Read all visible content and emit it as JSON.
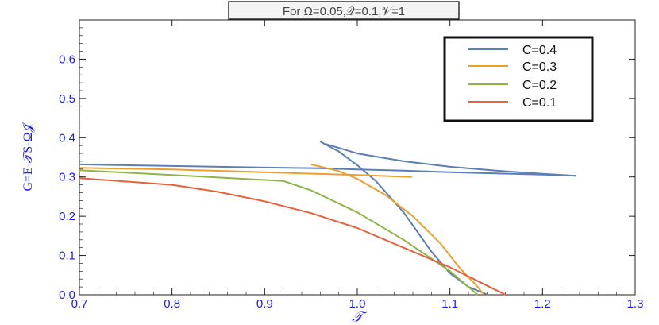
{
  "chart_data": {
    "type": "line",
    "title": "For Ω=0.05,𝒬=0.1,𝒱=1",
    "xlabel": "𝒯",
    "ylabel": "G=E-𝒯S-Ω𝒥",
    "xlim": [
      0.7,
      1.3
    ],
    "ylim": [
      0.0,
      0.7
    ],
    "xticks": [
      0.7,
      0.8,
      0.9,
      1.0,
      1.1,
      1.2,
      1.3
    ],
    "xtick_labels": [
      "0.7",
      "0.8",
      "0.9",
      "1.0",
      "1.1",
      "1.2",
      "1.3"
    ],
    "yticks": [
      0.0,
      0.1,
      0.2,
      0.3,
      0.4,
      0.5,
      0.6
    ],
    "ytick_labels": [
      "0.0",
      "0.1",
      "0.2",
      "0.3",
      "0.4",
      "0.5",
      "0.6"
    ],
    "legend_position": "top-right",
    "series": [
      {
        "name": "C=0.4",
        "color": "#5b7fb5",
        "segments": [
          {
            "x": [
              0.7,
              0.8,
              0.9,
              0.96
            ],
            "y": [
              0.332,
              0.328,
              0.324,
              0.322
            ]
          },
          {
            "x": [
              0.96,
              1.0,
              1.05,
              1.1,
              1.15,
              1.2,
              1.236
            ],
            "y": [
              0.322,
              0.319,
              0.316,
              0.312,
              0.309,
              0.306,
              0.303
            ]
          },
          {
            "x": [
              0.96,
              0.98,
              1.0,
              1.02,
              1.05,
              1.08,
              1.1,
              1.12,
              1.141
            ],
            "y": [
              0.39,
              0.365,
              0.33,
              0.29,
              0.21,
              0.11,
              0.055,
              0.02,
              0.0
            ]
          },
          {
            "x": [
              0.966,
              1.0,
              1.05,
              1.1,
              1.15,
              1.2,
              1.236
            ],
            "y": [
              0.384,
              0.36,
              0.34,
              0.326,
              0.316,
              0.308,
              0.303
            ]
          }
        ]
      },
      {
        "name": "C=0.3",
        "color": "#e8a030",
        "segments": [
          {
            "x": [
              0.7,
              0.8,
              0.9,
              1.0,
              1.059
            ],
            "y": [
              0.323,
              0.319,
              0.312,
              0.305,
              0.3
            ]
          },
          {
            "x": [
              0.95,
              0.98,
              1.0,
              1.03,
              1.06,
              1.09,
              1.11,
              1.13,
              1.137
            ],
            "y": [
              0.332,
              0.315,
              0.295,
              0.255,
              0.2,
              0.13,
              0.07,
              0.02,
              0.0
            ]
          }
        ]
      },
      {
        "name": "C=0.2",
        "color": "#8fb445",
        "segments": [
          {
            "x": [
              0.7,
              0.8,
              0.92,
              0.95,
              1.0,
              1.05,
              1.1,
              1.13
            ],
            "y": [
              0.317,
              0.305,
              0.29,
              0.266,
              0.21,
              0.14,
              0.06,
              0.0
            ]
          }
        ]
      },
      {
        "name": "C=0.1",
        "color": "#e8603c",
        "segments": [
          {
            "x": [
              0.7,
              0.8,
              0.85,
              0.9,
              0.95,
              1.0,
              1.05,
              1.1,
              1.13,
              1.16
            ],
            "y": [
              0.297,
              0.28,
              0.262,
              0.238,
              0.208,
              0.17,
              0.12,
              0.07,
              0.035,
              0.0
            ]
          }
        ]
      }
    ]
  }
}
